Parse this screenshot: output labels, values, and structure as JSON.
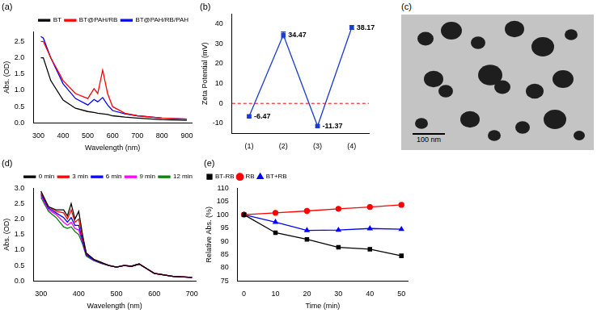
{
  "chart_data": [
    {
      "type": "line",
      "title": "(a)",
      "x_label": "Wavelength (nm)",
      "y_label": "Abs. (OD)",
      "x": [
        310,
        320,
        350,
        400,
        450,
        500,
        525,
        540,
        560,
        580,
        600,
        650,
        700,
        800,
        900
      ],
      "series": [
        {
          "name": "BT",
          "color": "#000000",
          "values": [
            2.0,
            2.0,
            1.3,
            0.7,
            0.45,
            0.35,
            0.32,
            0.3,
            0.28,
            0.26,
            0.22,
            0.18,
            0.15,
            0.1,
            0.08
          ]
        },
        {
          "name": "BT@PAH/RB",
          "color": "#ff0000",
          "values": [
            2.5,
            2.5,
            2.0,
            1.3,
            0.9,
            0.75,
            1.05,
            0.9,
            1.62,
            0.9,
            0.5,
            0.3,
            0.22,
            0.15,
            0.12
          ]
        },
        {
          "name": "BT@PAH/RB/PAH",
          "color": "#0000ff",
          "values": [
            2.65,
            2.6,
            2.0,
            1.2,
            0.75,
            0.55,
            0.72,
            0.65,
            0.78,
            0.55,
            0.38,
            0.28,
            0.22,
            0.15,
            0.12
          ]
        }
      ],
      "xlim": [
        280,
        920
      ],
      "xticks": [
        300,
        400,
        500,
        600,
        700,
        800,
        900
      ],
      "ylim": [
        0,
        2.8
      ],
      "yticks": [
        {
          "value": 0,
          "label": "0.0"
        },
        {
          "value": 0.5,
          "label": "0.5"
        },
        {
          "value": 1,
          "label": "1.0"
        },
        {
          "value": 1.5,
          "label": "1.5"
        },
        {
          "value": 2,
          "label": "2.0"
        },
        {
          "value": 2.5,
          "label": "2.5"
        }
      ],
      "grid": false,
      "legend": "upper right",
      "marker": "none",
      "line_style": "solid"
    },
    {
      "type": "line",
      "title": "(b)",
      "y_label": "Zeta Potential (mV)",
      "categories": [
        "(1)",
        "(2)",
        "(3)",
        "(4)"
      ],
      "series": [
        {
          "name": "Zeta Potential",
          "color": "#1a3ccf",
          "values": [
            -6.47,
            34.47,
            -11.37,
            38.17
          ],
          "errors": [
            0.6,
            1.5,
            0.5,
            1.0
          ]
        }
      ],
      "ylim": [
        -15,
        45
      ],
      "yticks": [
        -10,
        0,
        10,
        20,
        30,
        40
      ],
      "reference_line": {
        "value": 0,
        "color": "#ff0000",
        "line_style": "dashed"
      },
      "grid": false,
      "marker": "square",
      "line_style": "solid",
      "data_labels": true
    },
    {
      "type": "line",
      "title": "(d)",
      "x_label": "Wavelength (nm)",
      "y_label": "Abs. (OD)",
      "x": [
        300,
        320,
        340,
        360,
        370,
        380,
        390,
        400,
        410,
        420,
        440,
        460,
        480,
        500,
        520,
        540,
        560,
        580,
        600,
        650,
        700
      ],
      "series": [
        {
          "name": "0 min",
          "color": "#000000",
          "values": [
            2.9,
            2.4,
            2.3,
            2.3,
            2.1,
            2.5,
            2.0,
            2.25,
            1.5,
            0.9,
            0.7,
            0.6,
            0.5,
            0.45,
            0.5,
            0.48,
            0.55,
            0.4,
            0.25,
            0.15,
            0.12
          ]
        },
        {
          "name": "3 min",
          "color": "#ff0000",
          "values": [
            2.85,
            2.4,
            2.25,
            2.2,
            2.0,
            2.3,
            1.9,
            2.0,
            1.4,
            0.9,
            0.7,
            0.6,
            0.5,
            0.45,
            0.5,
            0.48,
            0.55,
            0.4,
            0.25,
            0.15,
            0.12
          ]
        },
        {
          "name": "6 min",
          "color": "#0000ff",
          "values": [
            2.8,
            2.35,
            2.2,
            2.05,
            1.9,
            2.05,
            1.8,
            1.8,
            1.3,
            0.85,
            0.68,
            0.58,
            0.5,
            0.45,
            0.5,
            0.48,
            0.55,
            0.4,
            0.25,
            0.15,
            0.12
          ]
        },
        {
          "name": "9 min",
          "color": "#ff00ff",
          "values": [
            2.75,
            2.3,
            2.15,
            1.9,
            1.8,
            1.9,
            1.7,
            1.65,
            1.25,
            0.85,
            0.67,
            0.58,
            0.5,
            0.45,
            0.5,
            0.48,
            0.55,
            0.4,
            0.25,
            0.15,
            0.12
          ]
        },
        {
          "name": "12 min",
          "color": "#008000",
          "values": [
            2.7,
            2.25,
            2.05,
            1.75,
            1.7,
            1.75,
            1.6,
            1.5,
            1.2,
            0.8,
            0.66,
            0.57,
            0.5,
            0.45,
            0.5,
            0.48,
            0.55,
            0.4,
            0.25,
            0.15,
            0.12
          ]
        }
      ],
      "xlim": [
        280,
        710
      ],
      "xticks": [
        300,
        400,
        500,
        600,
        700
      ],
      "ylim": [
        0,
        3
      ],
      "yticks": [
        {
          "value": 0,
          "label": "0.0"
        },
        {
          "value": 0.5,
          "label": "0.5"
        },
        {
          "value": 1,
          "label": "1.0"
        },
        {
          "value": 1.5,
          "label": "1.5"
        },
        {
          "value": 2,
          "label": "2.0"
        },
        {
          "value": 2.5,
          "label": "2.5"
        },
        {
          "value": 3,
          "label": "3.0"
        }
      ],
      "grid": false,
      "legend": "upper right",
      "marker": "none",
      "line_style": "solid"
    },
    {
      "type": "line",
      "title": "(e)",
      "x_label": "Time (min)",
      "y_label": "Relative Abs. (%)",
      "x": [
        0,
        10,
        20,
        30,
        40,
        50
      ],
      "series": [
        {
          "name": "BT-RB",
          "color": "#000000",
          "marker": "square",
          "values": [
            100,
            93.2,
            90.7,
            87.7,
            87.0,
            84.5
          ]
        },
        {
          "name": "RB",
          "color": "#ff0000",
          "marker": "circle",
          "values": [
            100,
            100.7,
            101.4,
            102.2,
            102.9,
            103.7
          ]
        },
        {
          "name": "BT+RB",
          "color": "#0000ff",
          "marker": "triangle",
          "values": [
            100,
            97.2,
            94.1,
            94.2,
            94.8,
            94.5
          ]
        }
      ],
      "xlim": [
        -2,
        52
      ],
      "xticks": [
        0,
        10,
        20,
        30,
        40,
        50
      ],
      "ylim": [
        75,
        110
      ],
      "yticks": [
        75,
        80,
        85,
        90,
        95,
        100,
        105,
        110
      ],
      "grid": false,
      "legend": "upper left",
      "line_style": "solid"
    }
  ],
  "image": {
    "title": "(c)",
    "scale_bar": "100 nm"
  }
}
